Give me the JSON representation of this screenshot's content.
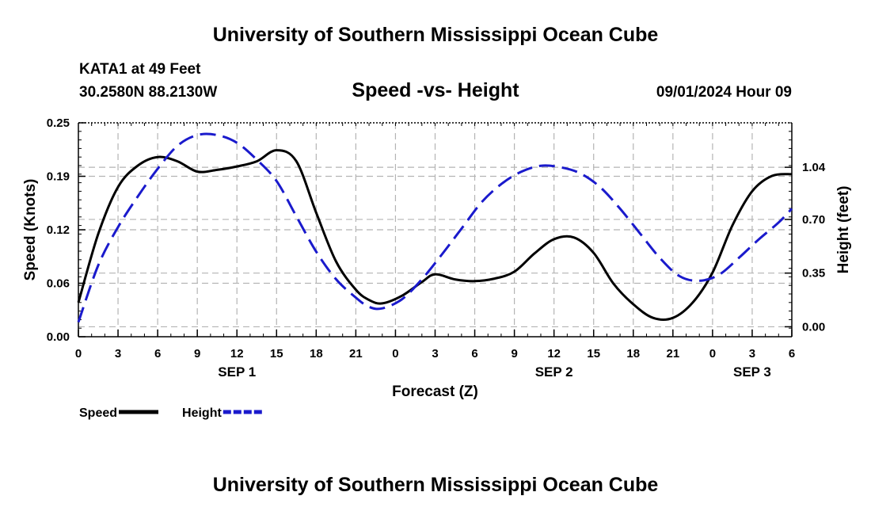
{
  "header": {
    "title": "University of Southern Mississippi Ocean Cube",
    "station": "KATA1 at 49 Feet",
    "coords": "30.2580N  88.2130W",
    "chart_title": "Speed -vs- Height",
    "run_time": "09/01/2024 Hour 09"
  },
  "footer": {
    "title": "University of Southern Mississippi Ocean Cube"
  },
  "chart_data": {
    "type": "line",
    "title": "Speed -vs- Height",
    "xlabel": "Forecast (Z)",
    "ylabel_left": "Speed (Knots)",
    "ylabel_right": "Height (feet)",
    "x_range": [
      0,
      54
    ],
    "x_ticks": [
      0,
      3,
      6,
      9,
      12,
      15,
      18,
      21,
      24,
      27,
      30,
      33,
      36,
      39,
      42,
      45,
      48,
      51,
      54
    ],
    "x_tick_labels": [
      "0",
      "3",
      "6",
      "9",
      "12",
      "15",
      "18",
      "21",
      "0",
      "3",
      "6",
      "9",
      "12",
      "15",
      "18",
      "21",
      "0",
      "3",
      "6"
    ],
    "date_labels": [
      {
        "x": 12,
        "label": "SEP 1"
      },
      {
        "x": 36,
        "label": "SEP 2"
      },
      {
        "x": 51,
        "label": "SEP 3"
      }
    ],
    "left_axis": {
      "ylim": [
        0,
        0.25
      ],
      "ticks": [
        0.0,
        0.0625,
        0.125,
        0.1875,
        0.25
      ],
      "tick_labels": [
        "0.00",
        "0.06",
        "0.12",
        "0.19",
        "0.25"
      ]
    },
    "right_axis": {
      "ylim": [
        -0.065,
        1.33
      ],
      "ticks": [
        0.0,
        0.35,
        0.7,
        1.04
      ],
      "tick_labels": [
        "0.00",
        "0.35",
        "0.70",
        "1.04"
      ]
    },
    "grid": true,
    "legend": "bottom-left",
    "series": [
      {
        "name": "Speed",
        "axis": "left",
        "color": "#000000",
        "dash": "solid",
        "x": [
          0,
          1.5,
          3,
          4.5,
          6,
          7.5,
          9,
          10.5,
          12,
          13.5,
          15,
          16.5,
          18,
          19.5,
          21,
          22,
          23,
          24.5,
          26,
          27,
          28.5,
          30,
          31.5,
          33,
          34.5,
          36,
          37.5,
          39,
          40.5,
          42,
          43.5,
          45,
          46.5,
          48,
          49.5,
          51,
          52.5,
          54
        ],
        "values": [
          0.04,
          0.12,
          0.175,
          0.2,
          0.21,
          0.205,
          0.193,
          0.195,
          0.199,
          0.205,
          0.218,
          0.205,
          0.145,
          0.088,
          0.055,
          0.043,
          0.039,
          0.048,
          0.064,
          0.073,
          0.067,
          0.065,
          0.068,
          0.076,
          0.097,
          0.114,
          0.116,
          0.098,
          0.062,
          0.038,
          0.022,
          0.022,
          0.04,
          0.075,
          0.13,
          0.17,
          0.188,
          0.19
        ]
      },
      {
        "name": "Height",
        "axis": "right",
        "color": "#1a1acc",
        "dash": "dashed",
        "x": [
          0,
          1.5,
          3,
          4.5,
          6,
          7.5,
          9,
          10.5,
          12,
          13.5,
          15,
          16.5,
          18,
          19.5,
          21,
          22,
          23,
          24.5,
          26,
          27.5,
          29,
          30.5,
          32,
          33.5,
          35,
          36.5,
          38,
          39.5,
          41,
          42.5,
          44,
          45.5,
          47,
          48.5,
          50,
          51.5,
          53,
          54
        ],
        "values": [
          0.03,
          0.4,
          0.65,
          0.85,
          1.03,
          1.18,
          1.25,
          1.25,
          1.2,
          1.09,
          0.95,
          0.72,
          0.49,
          0.31,
          0.19,
          0.13,
          0.12,
          0.18,
          0.31,
          0.47,
          0.64,
          0.81,
          0.93,
          1.01,
          1.05,
          1.04,
          1.0,
          0.91,
          0.77,
          0.61,
          0.45,
          0.33,
          0.3,
          0.34,
          0.45,
          0.57,
          0.68,
          0.77
        ]
      }
    ]
  }
}
